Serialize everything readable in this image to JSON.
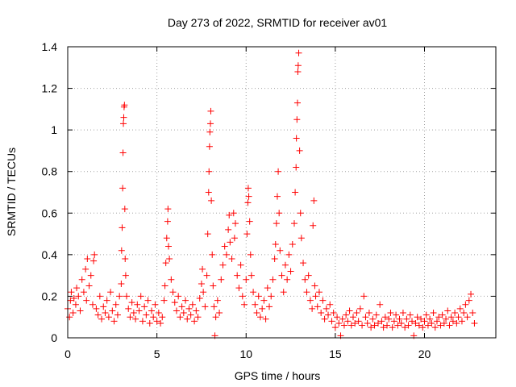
{
  "chart_data": {
    "type": "scatter",
    "title": "Day 273 of 2022, SRMTID for receiver av01",
    "xlabel": "GPS time / hours",
    "ylabel": "SRMTID / TECUs",
    "xlim": [
      0,
      24
    ],
    "ylim": [
      0,
      1.4
    ],
    "xticks": [
      0,
      5,
      10,
      15,
      20
    ],
    "yticks": [
      0,
      0.2,
      0.4,
      0.6,
      0.8,
      1,
      1.2,
      1.4
    ],
    "xtick_labels": [
      "0",
      "5",
      "10",
      "15",
      "20"
    ],
    "ytick_labels": [
      "0",
      "0.2",
      "0.4",
      "0.6",
      "0.8",
      "1",
      "1.2",
      "1.4"
    ],
    "grid": true,
    "marker": "+",
    "color": "#ff0000",
    "series": [
      {
        "name": "av01",
        "points": [
          [
            0.0,
            0.14
          ],
          [
            0.1,
            0.1
          ],
          [
            0.15,
            0.18
          ],
          [
            0.2,
            0.22
          ],
          [
            0.3,
            0.12
          ],
          [
            0.35,
            0.19
          ],
          [
            0.45,
            0.16
          ],
          [
            0.5,
            0.24
          ],
          [
            0.6,
            0.2
          ],
          [
            0.7,
            0.13
          ],
          [
            0.8,
            0.28
          ],
          [
            0.9,
            0.22
          ],
          [
            1.0,
            0.33
          ],
          [
            1.05,
            0.18
          ],
          [
            1.1,
            0.38
          ],
          [
            1.2,
            0.25
          ],
          [
            1.3,
            0.3
          ],
          [
            1.4,
            0.16
          ],
          [
            1.45,
            0.37
          ],
          [
            1.5,
            0.4
          ],
          [
            1.6,
            0.14
          ],
          [
            1.7,
            0.11
          ],
          [
            1.8,
            0.2
          ],
          [
            1.9,
            0.09
          ],
          [
            2.0,
            0.15
          ],
          [
            2.1,
            0.12
          ],
          [
            2.2,
            0.18
          ],
          [
            2.3,
            0.1
          ],
          [
            2.4,
            0.22
          ],
          [
            2.5,
            0.13
          ],
          [
            2.6,
            0.08
          ],
          [
            2.7,
            0.16
          ],
          [
            2.8,
            0.11
          ],
          [
            2.9,
            0.2
          ],
          [
            3.0,
            0.26
          ],
          [
            3.02,
            0.42
          ],
          [
            3.05,
            0.53
          ],
          [
            3.08,
            0.72
          ],
          [
            3.1,
            0.89
          ],
          [
            3.12,
            1.03
          ],
          [
            3.14,
            1.06
          ],
          [
            3.16,
            1.11
          ],
          [
            3.18,
            1.12
          ],
          [
            3.2,
            0.62
          ],
          [
            3.22,
            0.38
          ],
          [
            3.25,
            0.3
          ],
          [
            3.3,
            0.2
          ],
          [
            3.4,
            0.14
          ],
          [
            3.5,
            0.1
          ],
          [
            3.6,
            0.17
          ],
          [
            3.7,
            0.12
          ],
          [
            3.8,
            0.09
          ],
          [
            3.9,
            0.16
          ],
          [
            4.0,
            0.13
          ],
          [
            4.1,
            0.2
          ],
          [
            4.2,
            0.08
          ],
          [
            4.3,
            0.15
          ],
          [
            4.4,
            0.11
          ],
          [
            4.5,
            0.18
          ],
          [
            4.6,
            0.07
          ],
          [
            4.7,
            0.13
          ],
          [
            4.8,
            0.1
          ],
          [
            4.9,
            0.16
          ],
          [
            5.0,
            0.08
          ],
          [
            5.1,
            0.12
          ],
          [
            5.2,
            0.07
          ],
          [
            5.3,
            0.1
          ],
          [
            5.4,
            0.18
          ],
          [
            5.45,
            0.25
          ],
          [
            5.5,
            0.36
          ],
          [
            5.55,
            0.48
          ],
          [
            5.6,
            0.56
          ],
          [
            5.62,
            0.62
          ],
          [
            5.65,
            0.44
          ],
          [
            5.7,
            0.38
          ],
          [
            5.8,
            0.28
          ],
          [
            5.9,
            0.22
          ],
          [
            6.0,
            0.17
          ],
          [
            6.1,
            0.13
          ],
          [
            6.2,
            0.2
          ],
          [
            6.3,
            0.1
          ],
          [
            6.4,
            0.15
          ],
          [
            6.5,
            0.12
          ],
          [
            6.6,
            0.18
          ],
          [
            6.7,
            0.09
          ],
          [
            6.8,
            0.14
          ],
          [
            6.9,
            0.11
          ],
          [
            7.0,
            0.16
          ],
          [
            7.1,
            0.08
          ],
          [
            7.2,
            0.13
          ],
          [
            7.3,
            0.1
          ],
          [
            7.4,
            0.19
          ],
          [
            7.5,
            0.26
          ],
          [
            7.55,
            0.33
          ],
          [
            7.6,
            0.22
          ],
          [
            7.7,
            0.15
          ],
          [
            7.8,
            0.3
          ],
          [
            7.85,
            0.5
          ],
          [
            7.9,
            0.7
          ],
          [
            7.92,
            0.8
          ],
          [
            7.95,
            0.92
          ],
          [
            7.97,
            0.99
          ],
          [
            8.0,
            1.03
          ],
          [
            8.02,
            1.09
          ],
          [
            8.05,
            0.66
          ],
          [
            8.1,
            0.4
          ],
          [
            8.15,
            0.25
          ],
          [
            8.2,
            0.15
          ],
          [
            8.25,
            0.01
          ],
          [
            8.3,
            0.1
          ],
          [
            8.4,
            0.18
          ],
          [
            8.5,
            0.12
          ],
          [
            8.6,
            0.28
          ],
          [
            8.7,
            0.35
          ],
          [
            8.8,
            0.44
          ],
          [
            8.9,
            0.4
          ],
          [
            9.0,
            0.52
          ],
          [
            9.05,
            0.59
          ],
          [
            9.1,
            0.46
          ],
          [
            9.2,
            0.38
          ],
          [
            9.3,
            0.6
          ],
          [
            9.35,
            0.48
          ],
          [
            9.4,
            0.55
          ],
          [
            9.5,
            0.3
          ],
          [
            9.6,
            0.24
          ],
          [
            9.7,
            0.35
          ],
          [
            9.8,
            0.2
          ],
          [
            9.9,
            0.16
          ],
          [
            10.0,
            0.28
          ],
          [
            10.05,
            0.5
          ],
          [
            10.1,
            0.65
          ],
          [
            10.12,
            0.72
          ],
          [
            10.15,
            0.68
          ],
          [
            10.2,
            0.56
          ],
          [
            10.25,
            0.4
          ],
          [
            10.3,
            0.3
          ],
          [
            10.4,
            0.22
          ],
          [
            10.5,
            0.16
          ],
          [
            10.6,
            0.12
          ],
          [
            10.7,
            0.2
          ],
          [
            10.8,
            0.1
          ],
          [
            10.9,
            0.14
          ],
          [
            11.0,
            0.18
          ],
          [
            11.1,
            0.09
          ],
          [
            11.2,
            0.24
          ],
          [
            11.3,
            0.15
          ],
          [
            11.4,
            0.2
          ],
          [
            11.5,
            0.28
          ],
          [
            11.6,
            0.38
          ],
          [
            11.65,
            0.45
          ],
          [
            11.7,
            0.55
          ],
          [
            11.75,
            0.68
          ],
          [
            11.8,
            0.8
          ],
          [
            11.85,
            0.6
          ],
          [
            11.9,
            0.42
          ],
          [
            12.0,
            0.3
          ],
          [
            12.1,
            0.22
          ],
          [
            12.2,
            0.35
          ],
          [
            12.3,
            0.28
          ],
          [
            12.4,
            0.4
          ],
          [
            12.5,
            0.32
          ],
          [
            12.6,
            0.45
          ],
          [
            12.7,
            0.55
          ],
          [
            12.75,
            0.7
          ],
          [
            12.8,
            0.82
          ],
          [
            12.82,
            0.96
          ],
          [
            12.85,
            1.05
          ],
          [
            12.88,
            1.13
          ],
          [
            12.9,
            1.28
          ],
          [
            12.92,
            1.31
          ],
          [
            12.95,
            1.37
          ],
          [
            13.0,
            0.9
          ],
          [
            13.05,
            0.6
          ],
          [
            13.1,
            0.48
          ],
          [
            13.2,
            0.36
          ],
          [
            13.3,
            0.28
          ],
          [
            13.4,
            0.22
          ],
          [
            13.5,
            0.3
          ],
          [
            13.6,
            0.18
          ],
          [
            13.7,
            0.14
          ],
          [
            13.75,
            0.54
          ],
          [
            13.8,
            0.66
          ],
          [
            13.85,
            0.25
          ],
          [
            13.9,
            0.2
          ],
          [
            14.0,
            0.15
          ],
          [
            14.1,
            0.22
          ],
          [
            14.2,
            0.12
          ],
          [
            14.3,
            0.18
          ],
          [
            14.4,
            0.09
          ],
          [
            14.5,
            0.14
          ],
          [
            14.6,
            0.11
          ],
          [
            14.7,
            0.16
          ],
          [
            14.8,
            0.08
          ],
          [
            14.9,
            0.12
          ],
          [
            15.0,
            0.05
          ],
          [
            15.1,
            0.1
          ],
          [
            15.2,
            0.07
          ],
          [
            15.3,
            0.01
          ],
          [
            15.4,
            0.09
          ],
          [
            15.5,
            0.06
          ],
          [
            15.6,
            0.11
          ],
          [
            15.7,
            0.08
          ],
          [
            15.8,
            0.13
          ],
          [
            15.9,
            0.06
          ],
          [
            16.0,
            0.1
          ],
          [
            16.1,
            0.07
          ],
          [
            16.2,
            0.12
          ],
          [
            16.3,
            0.08
          ],
          [
            16.4,
            0.14
          ],
          [
            16.5,
            0.06
          ],
          [
            16.6,
            0.2
          ],
          [
            16.7,
            0.1
          ],
          [
            16.8,
            0.07
          ],
          [
            16.9,
            0.12
          ],
          [
            17.0,
            0.05
          ],
          [
            17.1,
            0.09
          ],
          [
            17.2,
            0.06
          ],
          [
            17.3,
            0.11
          ],
          [
            17.4,
            0.07
          ],
          [
            17.5,
            0.16
          ],
          [
            17.6,
            0.08
          ],
          [
            17.7,
            0.05
          ],
          [
            17.8,
            0.1
          ],
          [
            17.9,
            0.06
          ],
          [
            18.0,
            0.09
          ],
          [
            18.1,
            0.12
          ],
          [
            18.2,
            0.05
          ],
          [
            18.3,
            0.08
          ],
          [
            18.4,
            0.11
          ],
          [
            18.5,
            0.06
          ],
          [
            18.6,
            0.09
          ],
          [
            18.7,
            0.07
          ],
          [
            18.8,
            0.12
          ],
          [
            18.9,
            0.05
          ],
          [
            19.0,
            0.09
          ],
          [
            19.1,
            0.06
          ],
          [
            19.2,
            0.11
          ],
          [
            19.3,
            0.08
          ],
          [
            19.4,
            0.01
          ],
          [
            19.5,
            0.07
          ],
          [
            19.6,
            0.1
          ],
          [
            19.7,
            0.06
          ],
          [
            19.8,
            0.09
          ],
          [
            19.9,
            0.05
          ],
          [
            20.0,
            0.08
          ],
          [
            20.1,
            0.11
          ],
          [
            20.2,
            0.06
          ],
          [
            20.3,
            0.09
          ],
          [
            20.4,
            0.07
          ],
          [
            20.5,
            0.12
          ],
          [
            20.6,
            0.05
          ],
          [
            20.7,
            0.08
          ],
          [
            20.8,
            0.1
          ],
          [
            20.9,
            0.06
          ],
          [
            21.0,
            0.11
          ],
          [
            21.1,
            0.07
          ],
          [
            21.2,
            0.09
          ],
          [
            21.3,
            0.13
          ],
          [
            21.4,
            0.06
          ],
          [
            21.5,
            0.1
          ],
          [
            21.6,
            0.08
          ],
          [
            21.7,
            0.12
          ],
          [
            21.8,
            0.07
          ],
          [
            21.9,
            0.1
          ],
          [
            22.0,
            0.14
          ],
          [
            22.1,
            0.08
          ],
          [
            22.2,
            0.12
          ],
          [
            22.3,
            0.16
          ],
          [
            22.4,
            0.1
          ],
          [
            22.5,
            0.18
          ],
          [
            22.6,
            0.21
          ],
          [
            22.7,
            0.12
          ],
          [
            22.8,
            0.07
          ]
        ]
      }
    ]
  }
}
